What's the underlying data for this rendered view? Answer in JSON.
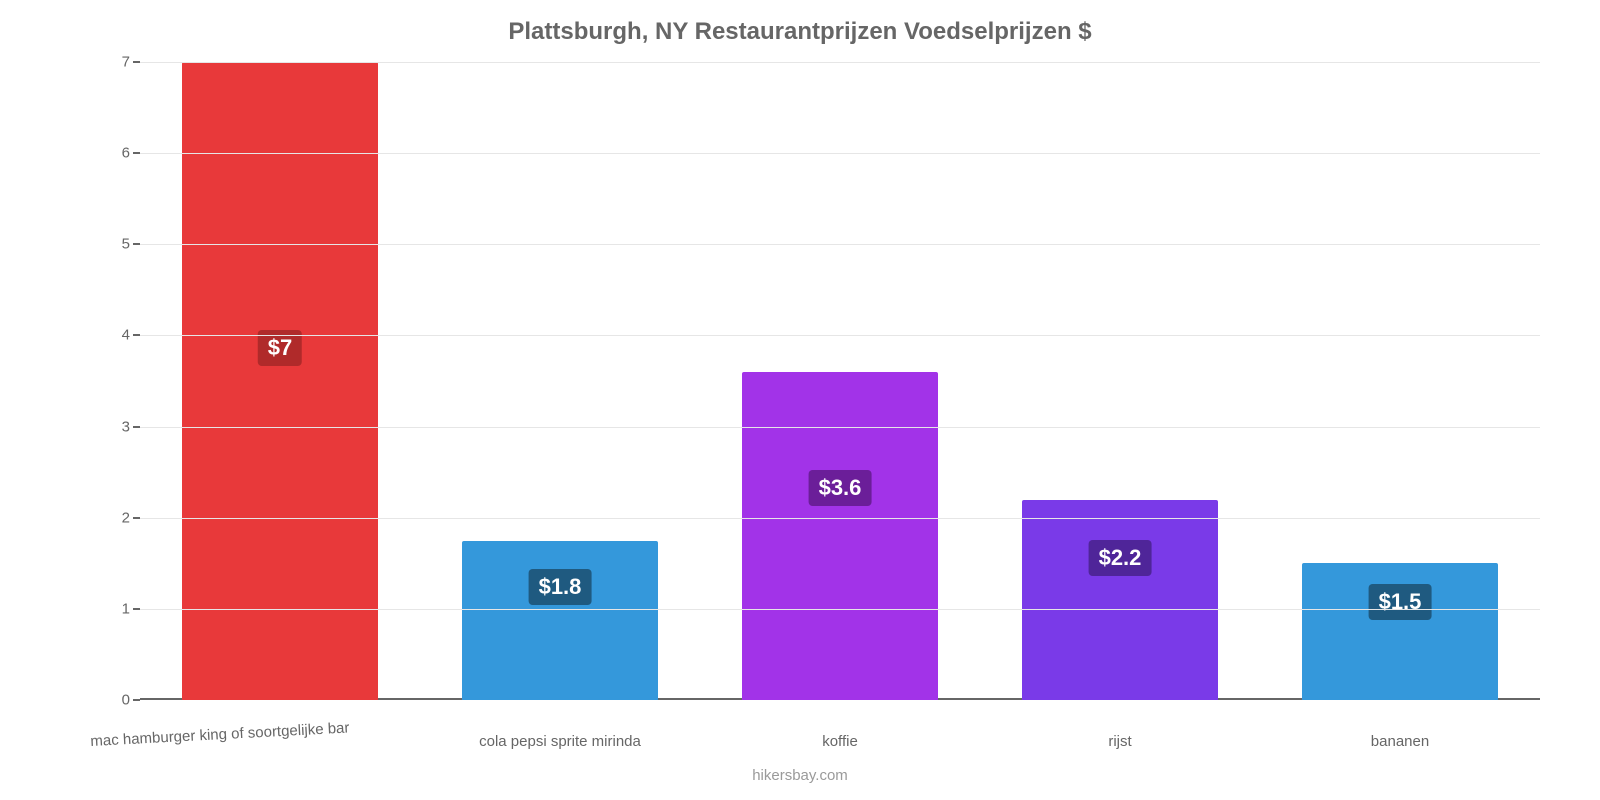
{
  "chart": {
    "type": "bar",
    "title": "Plattsburgh, NY Restaurantprijzen Voedselprijzen $",
    "title_fontsize": 24,
    "title_color": "#666666",
    "background_color": "#ffffff",
    "grid_color": "#e6e6e6",
    "axis_color": "#666666",
    "tick_label_color": "#666666",
    "tick_fontsize": 15,
    "ylim": [
      0,
      7
    ],
    "yticks": [
      0,
      1,
      2,
      3,
      4,
      5,
      6,
      7
    ],
    "bar_width_pct": 70,
    "value_label_fontsize": 22,
    "categories": [
      "mac hamburger king of soortgelijke bar",
      "cola pepsi sprite mirinda",
      "koffie",
      "rijst",
      "bananen"
    ],
    "values": [
      7,
      1.75,
      3.6,
      2.2,
      1.5
    ],
    "value_labels": [
      "$7",
      "$1.8",
      "$3.6",
      "$2.2",
      "$1.5"
    ],
    "bar_colors": [
      "#e8393a",
      "#3498db",
      "#a233e8",
      "#7a3ae8",
      "#3498db"
    ],
    "value_label_bg": [
      "#b02a2a",
      "#1f5a80",
      "#6b1e99",
      "#4f2599",
      "#1f5a80"
    ],
    "value_label_top_pct": [
      42,
      18,
      30,
      20,
      15
    ],
    "credit": "hikersbay.com",
    "credit_color": "#9a9a9a",
    "credit_fontsize": 15
  }
}
